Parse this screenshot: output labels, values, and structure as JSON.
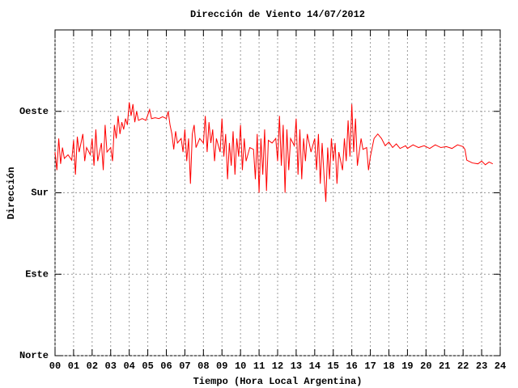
{
  "chart_data": {
    "type": "line",
    "title": "Dirección de Viento 14/07/2012",
    "x_label": "Tiempo (Hora Local Argentina)",
    "y_label": "Dirección",
    "xlim": [
      0,
      24
    ],
    "ylim": [
      0,
      360
    ],
    "xticks": [
      {
        "value": 0,
        "label": "00"
      },
      {
        "value": 1,
        "label": "01"
      },
      {
        "value": 2,
        "label": "02"
      },
      {
        "value": 3,
        "label": "03"
      },
      {
        "value": 4,
        "label": "04"
      },
      {
        "value": 5,
        "label": "05"
      },
      {
        "value": 6,
        "label": "06"
      },
      {
        "value": 7,
        "label": "07"
      },
      {
        "value": 8,
        "label": "08"
      },
      {
        "value": 9,
        "label": "09"
      },
      {
        "value": 10,
        "label": "10"
      },
      {
        "value": 11,
        "label": "11"
      },
      {
        "value": 12,
        "label": "12"
      },
      {
        "value": 13,
        "label": "13"
      },
      {
        "value": 14,
        "label": "14"
      },
      {
        "value": 15,
        "label": "15"
      },
      {
        "value": 16,
        "label": "16"
      },
      {
        "value": 17,
        "label": "17"
      },
      {
        "value": 18,
        "label": "18"
      },
      {
        "value": 19,
        "label": "19"
      },
      {
        "value": 20,
        "label": "20"
      },
      {
        "value": 21,
        "label": "21"
      },
      {
        "value": 22,
        "label": "22"
      },
      {
        "value": 23,
        "label": "23"
      },
      {
        "value": 24,
        "label": "24"
      }
    ],
    "yticks": [
      {
        "value": 0,
        "label": "Norte"
      },
      {
        "value": 90,
        "label": "Este"
      },
      {
        "value": 180,
        "label": "Sur"
      },
      {
        "value": 270,
        "label": "Oeste"
      }
    ],
    "grid": true,
    "color": "#ff0000",
    "x": [
      0.0,
      0.1,
      0.2,
      0.3,
      0.4,
      0.5,
      0.7,
      0.9,
      1.0,
      1.1,
      1.2,
      1.3,
      1.5,
      1.6,
      1.7,
      1.9,
      2.0,
      2.1,
      2.2,
      2.3,
      2.5,
      2.6,
      2.7,
      2.8,
      3.0,
      3.1,
      3.2,
      3.3,
      3.4,
      3.5,
      3.6,
      3.7,
      3.8,
      3.9,
      4.0,
      4.1,
      4.2,
      4.3,
      4.4,
      4.5,
      4.7,
      4.9,
      5.1,
      5.2,
      5.4,
      5.6,
      5.8,
      6.0,
      6.1,
      6.2,
      6.3,
      6.4,
      6.5,
      6.6,
      6.8,
      6.9,
      7.0,
      7.1,
      7.2,
      7.3,
      7.4,
      7.5,
      7.6,
      7.8,
      8.0,
      8.1,
      8.2,
      8.3,
      8.4,
      8.5,
      8.6,
      8.7,
      8.9,
      9.0,
      9.1,
      9.2,
      9.3,
      9.4,
      9.5,
      9.6,
      9.7,
      9.8,
      9.9,
      10.0,
      10.1,
      10.2,
      10.3,
      10.5,
      10.7,
      10.8,
      10.9,
      11.0,
      11.1,
      11.2,
      11.3,
      11.4,
      11.5,
      11.7,
      11.9,
      12.0,
      12.1,
      12.2,
      12.3,
      12.4,
      12.5,
      12.6,
      12.7,
      12.9,
      13.0,
      13.1,
      13.2,
      13.3,
      13.4,
      13.5,
      13.6,
      13.8,
      14.0,
      14.1,
      14.2,
      14.3,
      14.4,
      14.5,
      14.6,
      14.7,
      14.8,
      14.9,
      15.0,
      15.1,
      15.2,
      15.3,
      15.5,
      15.6,
      15.7,
      15.8,
      15.9,
      16.0,
      16.1,
      16.2,
      16.3,
      16.5,
      16.6,
      16.8,
      16.9,
      17.0,
      17.2,
      17.4,
      17.6,
      17.8,
      18.0,
      18.2,
      18.4,
      18.6,
      18.9,
      19.0,
      19.3,
      19.6,
      19.9,
      20.2,
      20.5,
      20.8,
      21.1,
      21.4,
      21.7,
      22.0,
      22.1,
      22.2,
      22.5,
      22.8,
      23.0,
      23.2,
      23.4,
      23.6
    ],
    "values": [
      225,
      205,
      240,
      212,
      230,
      218,
      222,
      216,
      238,
      200,
      242,
      225,
      245,
      215,
      230,
      222,
      240,
      210,
      250,
      215,
      235,
      205,
      255,
      225,
      230,
      215,
      255,
      240,
      265,
      245,
      258,
      250,
      262,
      255,
      280,
      265,
      278,
      258,
      270,
      260,
      262,
      260,
      272,
      262,
      263,
      262,
      264,
      262,
      270,
      255,
      245,
      228,
      248,
      235,
      240,
      225,
      250,
      215,
      240,
      190,
      245,
      255,
      230,
      240,
      235,
      265,
      225,
      258,
      235,
      250,
      215,
      240,
      225,
      262,
      220,
      245,
      195,
      235,
      210,
      248,
      200,
      240,
      220,
      255,
      205,
      240,
      215,
      230,
      228,
      195,
      245,
      180,
      240,
      200,
      250,
      182,
      238,
      235,
      240,
      215,
      265,
      210,
      255,
      180,
      250,
      205,
      240,
      232,
      262,
      200,
      250,
      195,
      240,
      215,
      245,
      225,
      240,
      205,
      245,
      190,
      235,
      200,
      170,
      230,
      195,
      240,
      215,
      235,
      190,
      225,
      205,
      240,
      215,
      260,
      220,
      278,
      225,
      262,
      210,
      240,
      228,
      230,
      205,
      220,
      240,
      245,
      240,
      232,
      236,
      230,
      234,
      229,
      232,
      229,
      233,
      230,
      232,
      229,
      233,
      230,
      231,
      229,
      233,
      231,
      228,
      216,
      213,
      212,
      215,
      211,
      214,
      212
    ]
  }
}
